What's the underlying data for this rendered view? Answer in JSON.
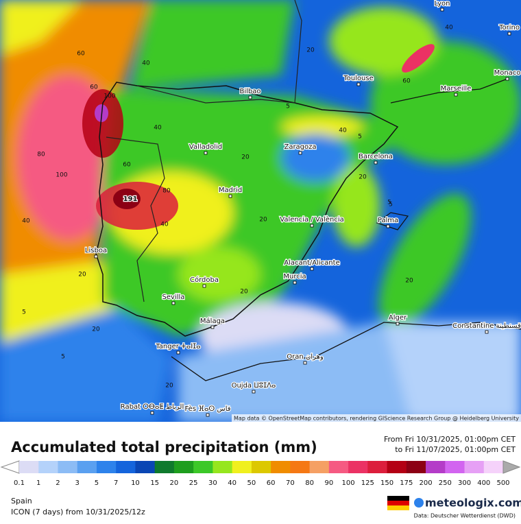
{
  "map": {
    "cities": [
      "Bilbao",
      "Toulouse",
      "Lyon",
      "Torino",
      "Monaco",
      "Marseille",
      "Valladolid",
      "Zaragoza",
      "Barcelona",
      "Madrid",
      "Valencia / València",
      "Palma",
      "Lisboa",
      "Alacant/Alicante",
      "Murcia",
      "Córdoba",
      "Sevilla",
      "Málaga",
      "Tanger ⵜⴰⵏⵊⴰ",
      "Alger",
      "Constantine قسنطينة",
      "Oran وهران",
      "Oujda ⵡⵓⵊⴷⴰ",
      "Rabat ⵔⴱⴰⵟ الرباط",
      "Fès ⴼⴰⵙ فاس"
    ],
    "contour_labels": [
      "60",
      "80",
      "100",
      "40",
      "20",
      "5",
      "191",
      "60",
      "80",
      "100",
      "40",
      "20",
      "5",
      "40",
      "20",
      "60",
      "40",
      "20",
      "5",
      "20",
      "20",
      "5",
      "20",
      "5",
      "40",
      "20",
      "5",
      "40",
      "60",
      "20"
    ],
    "attribution": "Map data © OpenStreetMap contributors, rendering GIScience Research Group @ Heidelberg University"
  },
  "footer": {
    "title": "Accumulated total precipitation (mm)",
    "from": "From Fri 10/31/2025, 01:00pm CET",
    "to": "to Fri 11/07/2025, 01:00pm CET",
    "legend_labels": [
      "0.1",
      "1",
      "2",
      "3",
      "5",
      "7",
      "10",
      "15",
      "20",
      "25",
      "30",
      "40",
      "50",
      "60",
      "70",
      "80",
      "90",
      "100",
      "125",
      "150",
      "175",
      "200",
      "250",
      "300",
      "400",
      "500"
    ],
    "legend_colors": [
      "#dcdcf5",
      "#b4d2fa",
      "#8cbcf5",
      "#5aa0f0",
      "#2d82eb",
      "#1464dc",
      "#0a46b4",
      "#0f7a2d",
      "#1e9e1e",
      "#3cc828",
      "#96e61e",
      "#f0f01e",
      "#dcc800",
      "#f08c00",
      "#f57814",
      "#f5a064",
      "#f55a82",
      "#eb3264",
      "#dc1e3c",
      "#b40014",
      "#8c0014",
      "#b43cc8",
      "#d264f0",
      "#e6a0f5",
      "#f5d2fa"
    ],
    "region": "Spain",
    "model": "ICON (7 days) from 10/31/2025/12z",
    "brand": "meteologix.com",
    "source": "Data: Deutscher Wetterdienst (DWD)"
  }
}
